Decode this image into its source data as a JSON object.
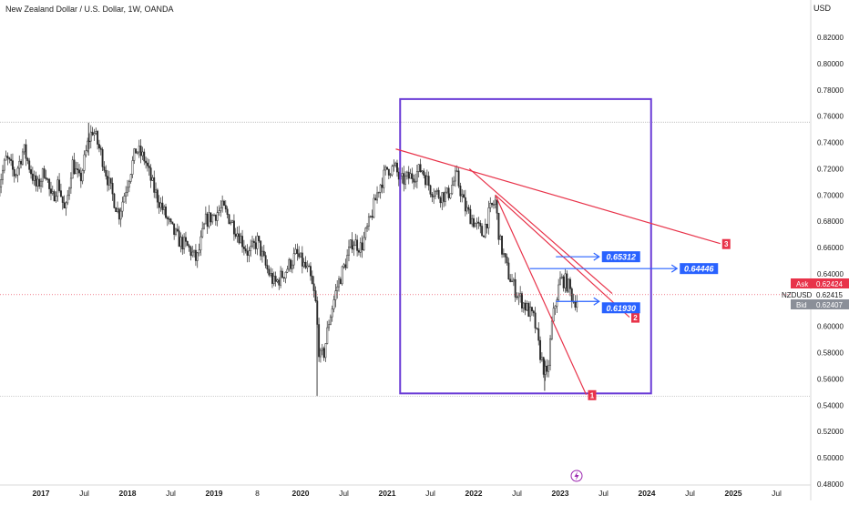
{
  "title": "New Zealand Dollar / U.S. Dollar, 1W, OANDA",
  "currency": "USD",
  "colors": {
    "candle": "#2a2a2a",
    "trendline": "#e8334a",
    "box": "#6a3bd6",
    "arrow": "#2962ff",
    "label_bg": "#2962ff",
    "number_badge": "#e8334a",
    "price_line": "#e8334a"
  },
  "quote": {
    "ask_label": "Ask",
    "ask_value": "0.62424",
    "symbol": "NZDUSD",
    "last_value": "0.62415",
    "bid_label": "Bid",
    "bid_value": "0.62407"
  },
  "chart_data": {
    "type": "candlestick",
    "y_ticks": [
      "0.82000",
      "0.80000",
      "0.78000",
      "0.76000",
      "0.74000",
      "0.72000",
      "0.70000",
      "0.68000",
      "0.66000",
      "0.64000",
      "0.62000",
      "0.60000",
      "0.58000",
      "0.56000",
      "0.54000",
      "0.52000",
      "0.50000",
      "0.48000"
    ],
    "x_ticks": [
      "2017",
      "Jul",
      "2018",
      "Jul",
      "2019",
      "8",
      "2020",
      "Jul",
      "2021",
      "Jul",
      "2022",
      "Jul",
      "2023",
      "Jul",
      "2024",
      "Jul",
      "2025",
      "Jul"
    ],
    "ylim": [
      0.475,
      0.833
    ],
    "xlim": [
      2016.5,
      2025.95
    ],
    "close_path": [
      [
        2016.5,
        0.705
      ],
      [
        2016.6,
        0.728
      ],
      [
        2016.7,
        0.715
      ],
      [
        2016.8,
        0.735
      ],
      [
        2016.95,
        0.705
      ],
      [
        2017.05,
        0.72
      ],
      [
        2017.12,
        0.695
      ],
      [
        2017.2,
        0.71
      ],
      [
        2017.28,
        0.685
      ],
      [
        2017.36,
        0.725
      ],
      [
        2017.45,
        0.71
      ],
      [
        2017.55,
        0.742
      ],
      [
        2017.6,
        0.75
      ],
      [
        2017.7,
        0.73
      ],
      [
        2017.8,
        0.705
      ],
      [
        2017.9,
        0.685
      ],
      [
        2018.0,
        0.71
      ],
      [
        2018.1,
        0.735
      ],
      [
        2018.2,
        0.727
      ],
      [
        2018.3,
        0.705
      ],
      [
        2018.4,
        0.69
      ],
      [
        2018.5,
        0.675
      ],
      [
        2018.6,
        0.665
      ],
      [
        2018.7,
        0.66
      ],
      [
        2018.8,
        0.65
      ],
      [
        2018.9,
        0.68
      ],
      [
        2019.0,
        0.685
      ],
      [
        2019.1,
        0.69
      ],
      [
        2019.2,
        0.68
      ],
      [
        2019.3,
        0.668
      ],
      [
        2019.4,
        0.655
      ],
      [
        2019.5,
        0.665
      ],
      [
        2019.6,
        0.645
      ],
      [
        2019.7,
        0.632
      ],
      [
        2019.8,
        0.64
      ],
      [
        2019.95,
        0.655
      ],
      [
        2020.1,
        0.64
      ],
      [
        2020.17,
        0.62
      ],
      [
        2020.22,
        0.575
      ],
      [
        2020.27,
        0.58
      ],
      [
        2020.33,
        0.605
      ],
      [
        2020.42,
        0.63
      ],
      [
        2020.5,
        0.645
      ],
      [
        2020.6,
        0.665
      ],
      [
        2020.7,
        0.66
      ],
      [
        2020.8,
        0.68
      ],
      [
        2020.9,
        0.705
      ],
      [
        2021.0,
        0.72
      ],
      [
        2021.1,
        0.72
      ],
      [
        2021.15,
        0.71
      ],
      [
        2021.3,
        0.715
      ],
      [
        2021.4,
        0.72
      ],
      [
        2021.5,
        0.705
      ],
      [
        2021.6,
        0.7
      ],
      [
        2021.7,
        0.7
      ],
      [
        2021.8,
        0.715
      ],
      [
        2021.9,
        0.69
      ],
      [
        2022.0,
        0.68
      ],
      [
        2022.1,
        0.67
      ],
      [
        2022.2,
        0.69
      ],
      [
        2022.25,
        0.695
      ],
      [
        2022.3,
        0.665
      ],
      [
        2022.4,
        0.64
      ],
      [
        2022.5,
        0.625
      ],
      [
        2022.6,
        0.615
      ],
      [
        2022.7,
        0.605
      ],
      [
        2022.75,
        0.585
      ],
      [
        2022.8,
        0.57
      ],
      [
        2022.85,
        0.56
      ],
      [
        2022.9,
        0.6
      ],
      [
        2022.95,
        0.62
      ],
      [
        2023.0,
        0.635
      ],
      [
        2023.05,
        0.635
      ],
      [
        2023.1,
        0.63
      ],
      [
        2023.15,
        0.62
      ],
      [
        2023.2,
        0.62
      ]
    ],
    "annotations": {
      "box": {
        "x": [
          2021.15,
          2024.05
        ],
        "y": [
          0.549,
          0.773
        ]
      },
      "trendlines": [
        {
          "label": "1",
          "from": [
            2022.25,
            0.7
          ],
          "to": [
            2023.3,
            0.548
          ]
        },
        {
          "label": "2",
          "from": [
            2022.25,
            0.7
          ],
          "to": [
            2023.8,
            0.607
          ]
        },
        {
          "label": "3",
          "from": [
            2021.1,
            0.735
          ],
          "to": [
            2024.85,
            0.663
          ]
        },
        {
          "label": "",
          "from": [
            2021.95,
            0.72
          ],
          "to": [
            2023.6,
            0.625
          ]
        }
      ],
      "arrows": [
        {
          "label": "0.65312",
          "from": [
            2022.95,
            0.653
          ],
          "to": [
            2023.45,
            0.653
          ]
        },
        {
          "label": "0.64446",
          "from": [
            2022.65,
            0.644
          ],
          "to": [
            2024.35,
            0.644
          ]
        },
        {
          "label": "0.61930",
          "from": [
            2022.95,
            0.619
          ],
          "to": [
            2023.45,
            0.619
          ]
        }
      ],
      "hlines": [
        0.7555,
        0.547
      ],
      "price_line": 0.62415
    }
  }
}
